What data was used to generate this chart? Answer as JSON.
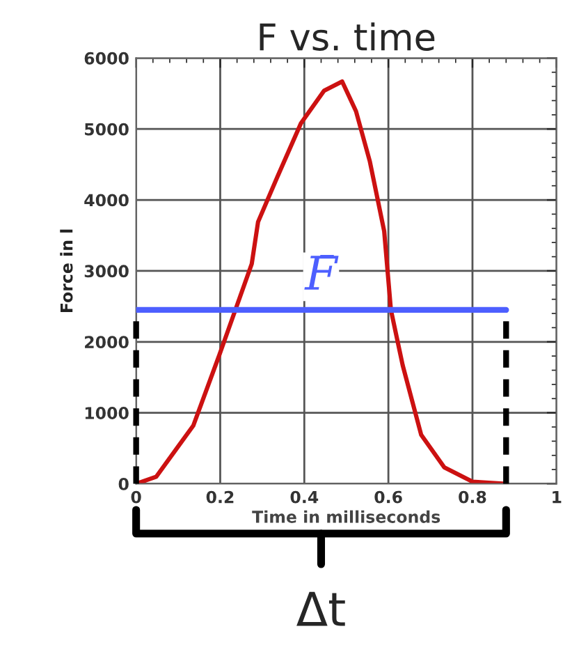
{
  "chart_data": {
    "type": "line",
    "title": "F vs. time",
    "xlabel": "Time in milliseconds",
    "ylabel": "Force in l",
    "x": [
      0,
      0.048,
      0.136,
      0.197,
      0.236,
      0.275,
      0.29,
      0.337,
      0.392,
      0.447,
      0.49,
      0.523,
      0.556,
      0.59,
      0.606,
      0.634,
      0.678,
      0.733,
      0.8,
      0.878
    ],
    "series": [
      {
        "color": "#cc1111",
        "values": [
          0,
          100,
          820,
          1800,
          2450,
          3100,
          3690,
          4340,
          5080,
          5540,
          5670,
          5250,
          4540,
          3560,
          2450,
          1670,
          690,
          230,
          30,
          0
        ]
      }
    ],
    "xlim": [
      0,
      1
    ],
    "xticks": [
      0,
      0.2,
      0.4,
      0.6,
      0.8,
      1
    ],
    "ylim": [
      0,
      6000
    ],
    "yticks": [
      0,
      1000,
      2000,
      3000,
      4000,
      5000,
      6000
    ],
    "grid": true,
    "marker": "none",
    "line_style": "solid",
    "ref_lines": [
      {
        "axis": "y",
        "value": 2450,
        "label": "F̄",
        "color": "#4d5fff",
        "line_style": "solid"
      },
      {
        "axis": "x",
        "value": 0,
        "color": "#000000",
        "line_style": "dashed"
      },
      {
        "axis": "x",
        "value": 0.88,
        "color": "#000000",
        "line_style": "dashed"
      }
    ],
    "annotations": [
      "Δt"
    ]
  }
}
